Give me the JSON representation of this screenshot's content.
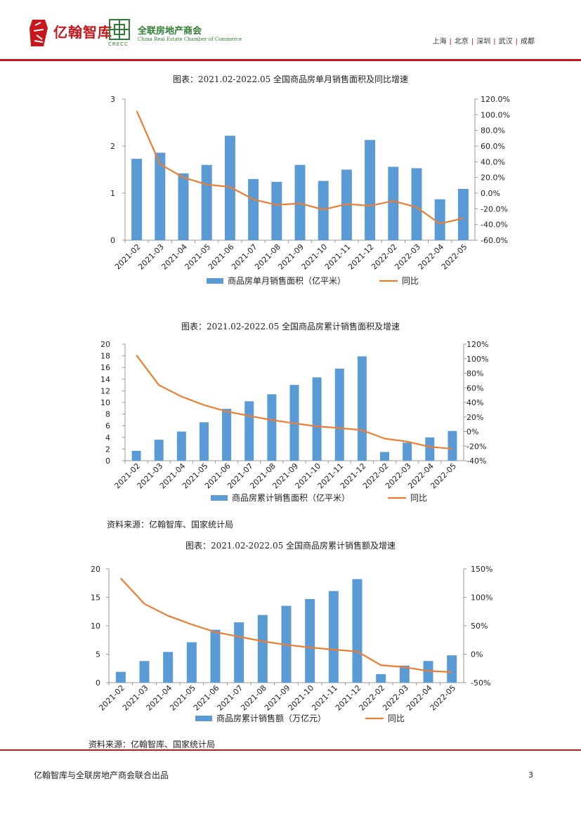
{
  "header": {
    "brand": "亿翰智库",
    "logo_mark_char": "亿翰",
    "partner_cn": "全联房地产商会",
    "partner_en": "China Real Estate Chamber of Commerce",
    "partner_abbr": "CRECC",
    "cities": [
      "上海",
      "北京",
      "深圳",
      "武汉",
      "成都"
    ]
  },
  "source_label": "资料来源：亿翰智库、国家统计局",
  "footer": {
    "text": "亿翰智库与全联房地产商会联合出品",
    "page": "3"
  },
  "colors": {
    "bar": "#5b9bd5",
    "line": "#ed7d31",
    "brand_red": "#c8161d",
    "partner_green": "#2e7d32"
  },
  "chart_data": [
    {
      "type": "bar",
      "title": "图表：2021.02-2022.05 全国商品房单月销售面积及同比增速",
      "categories": [
        "2021-02",
        "2021-03",
        "2021-04",
        "2021-05",
        "2021-06",
        "2021-07",
        "2021-08",
        "2021-09",
        "2021-10",
        "2021-11",
        "2021-12",
        "2022-02",
        "2022-03",
        "2022-04",
        "2022-05"
      ],
      "series": [
        {
          "name": "商品房单月销售面积（亿平米）",
          "kind": "bar",
          "axis": "left",
          "values": [
            1.73,
            1.86,
            1.42,
            1.6,
            2.22,
            1.3,
            1.24,
            1.6,
            1.26,
            1.5,
            2.13,
            1.56,
            1.53,
            0.87,
            1.09
          ]
        },
        {
          "name": "同比",
          "kind": "line",
          "axis": "right",
          "values": [
            104.9,
            37.0,
            20.0,
            11.0,
            8.0,
            -8.0,
            -15.0,
            -13.0,
            -21.0,
            -14.0,
            -16.0,
            -10.0,
            -18.0,
            -39.0,
            -32.0
          ]
        }
      ],
      "left_axis": {
        "min": 0,
        "max": 3,
        "step": 1,
        "ticks": [
          "0",
          "1",
          "2",
          "3"
        ]
      },
      "right_axis": {
        "min": -60,
        "max": 120,
        "step": 20,
        "ticks": [
          "-60.0%",
          "-40.0%",
          "-20.0%",
          "0.0%",
          "20.0%",
          "40.0%",
          "60.0%",
          "80.0%",
          "100.0%",
          "120.0%"
        ]
      }
    },
    {
      "type": "bar",
      "title": "图表：2021.02-2022.05 全国商品房累计销售面积及增速",
      "categories": [
        "2021-02",
        "2021-03",
        "2021-04",
        "2021-05",
        "2021-06",
        "2021-07",
        "2021-08",
        "2021-09",
        "2021-10",
        "2021-11",
        "2021-12",
        "2022-02",
        "2022-03",
        "2022-04",
        "2022-05"
      ],
      "series": [
        {
          "name": "商品房累计销售面积（亿平米）",
          "kind": "bar",
          "axis": "left",
          "values": [
            1.7,
            3.6,
            5.0,
            6.6,
            8.9,
            10.2,
            11.4,
            13.0,
            14.3,
            15.8,
            17.9,
            1.5,
            3.1,
            4.0,
            5.1
          ]
        },
        {
          "name": "同比",
          "kind": "line",
          "axis": "right",
          "values": [
            104.9,
            63.8,
            48.1,
            36.3,
            27.7,
            21.5,
            15.9,
            11.3,
            7.2,
            4.8,
            1.9,
            -9.6,
            -13.8,
            -20.9,
            -23.6
          ]
        }
      ],
      "left_axis": {
        "min": 0,
        "max": 20,
        "step": 2,
        "ticks": [
          "0",
          "2",
          "4",
          "6",
          "8",
          "10",
          "12",
          "14",
          "16",
          "18",
          "20"
        ]
      },
      "right_axis": {
        "min": -40,
        "max": 120,
        "step": 20,
        "ticks": [
          "-40%",
          "-20%",
          "0%",
          "20%",
          "40%",
          "60%",
          "80%",
          "100%",
          "120%"
        ]
      }
    },
    {
      "type": "bar",
      "title": "图表：2021.02-2022.05 全国商品房累计销售额及增速",
      "categories": [
        "2021-02",
        "2021-03",
        "2021-04",
        "2021-05",
        "2021-06",
        "2021-07",
        "2021-08",
        "2021-09",
        "2021-10",
        "2021-11",
        "2021-12",
        "2022-02",
        "2022-03",
        "2022-04",
        "2022-05"
      ],
      "series": [
        {
          "name": "商品房累计销售额（万亿元）",
          "kind": "bar",
          "axis": "left",
          "values": [
            1.9,
            3.8,
            5.4,
            7.1,
            9.3,
            10.6,
            11.9,
            13.5,
            14.7,
            16.1,
            18.2,
            1.5,
            3.0,
            3.8,
            4.8
          ]
        },
        {
          "name": "同比",
          "kind": "line",
          "axis": "right",
          "values": [
            133.4,
            88.5,
            67.5,
            52.4,
            38.9,
            30.7,
            22.8,
            16.6,
            11.8,
            8.0,
            4.8,
            -19.3,
            -22.7,
            -29.5,
            -31.5
          ]
        }
      ],
      "left_axis": {
        "min": 0,
        "max": 20,
        "step": 5,
        "ticks": [
          "0",
          "5",
          "10",
          "15",
          "20"
        ]
      },
      "right_axis": {
        "min": -50,
        "max": 150,
        "step": 50,
        "ticks": [
          "-50%",
          "0%",
          "50%",
          "100%",
          "150%"
        ]
      }
    }
  ]
}
